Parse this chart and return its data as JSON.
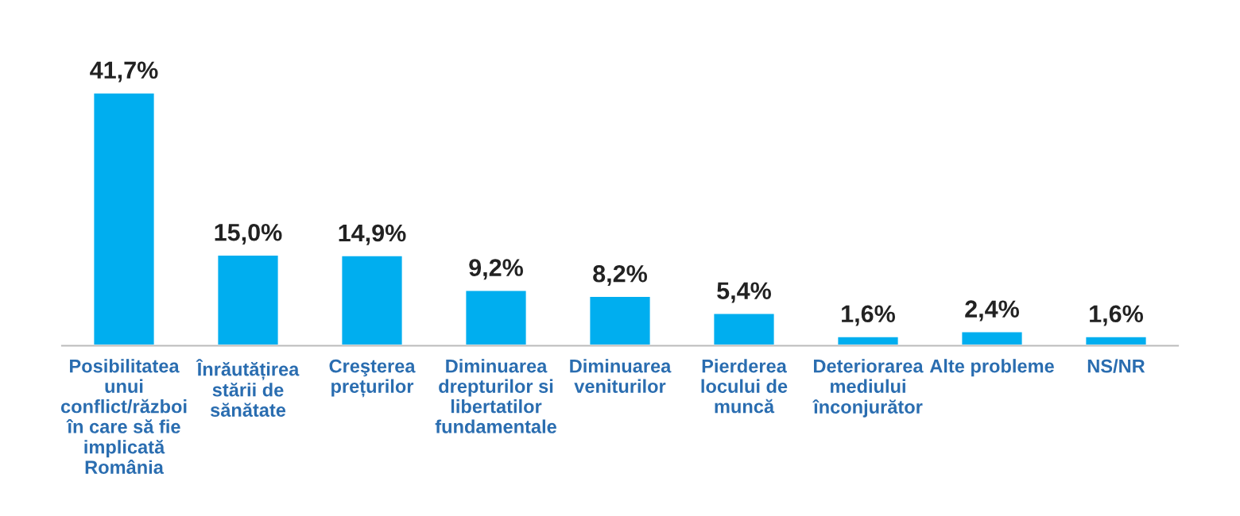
{
  "chart_data": {
    "type": "bar",
    "categories": [
      "Posibilitatea\nunui\nconflict/război\nîn care să fie\nimplicată\nRomânia",
      "Înrăutățirea\nstării de\nsănătate",
      "Creşterea\nprețurilor",
      "Diminuarea\ndrepturilor si\nlibertatilor\nfundamentale",
      "Diminuarea\nveniturilor",
      "Pierderea\nlocului de\nmuncă",
      "Deteriorarea\nmediului\nînconjurător",
      "Alte probleme",
      "NS/NR"
    ],
    "values": [
      41.7,
      15.0,
      14.9,
      9.2,
      8.2,
      5.4,
      1.6,
      2.4,
      1.6
    ],
    "value_labels": [
      "41,7%",
      "15,0%",
      "14,9%",
      "9,2%",
      "8,2%",
      "5,4%",
      "1,6%",
      "2,4%",
      "1,6%"
    ],
    "color": "#00aeef"
  }
}
